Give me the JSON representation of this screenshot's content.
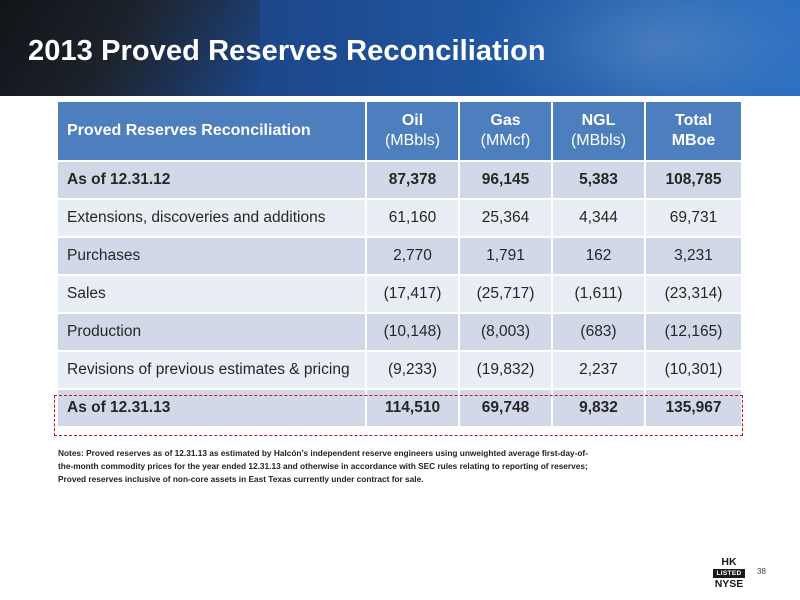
{
  "slide": {
    "title": "2013 Proved Reserves Reconciliation",
    "page_number": "38"
  },
  "table": {
    "header": {
      "label": "Proved Reserves Reconciliation",
      "columns": [
        {
          "top": "Oil",
          "bottom": "(MBbls)"
        },
        {
          "top": "Gas",
          "bottom": "(MMcf)"
        },
        {
          "top": "NGL",
          "bottom": "(MBbls)"
        },
        {
          "top": "Total",
          "bottom": "MBoe"
        }
      ]
    },
    "rows": [
      {
        "label": "As of 12.31.12",
        "values": [
          "87,378",
          "96,145",
          "5,383",
          "108,785"
        ]
      },
      {
        "label": "Extensions, discoveries and additions",
        "values": [
          "61,160",
          "25,364",
          "4,344",
          "69,731"
        ]
      },
      {
        "label": "Purchases",
        "values": [
          "2,770",
          "1,791",
          "162",
          "3,231"
        ]
      },
      {
        "label": "Sales",
        "values": [
          "(17,417)",
          "(25,717)",
          "(1,611)",
          "(23,314)"
        ]
      },
      {
        "label": "Production",
        "values": [
          "(10,148)",
          "(8,003)",
          "(683)",
          "(12,165)"
        ]
      },
      {
        "label": "Revisions of previous estimates & pricing",
        "values": [
          "(9,233)",
          "(19,832)",
          "2,237",
          "(10,301)"
        ]
      },
      {
        "label": "As of 12.31.13",
        "values": [
          "114,510",
          "69,748",
          "9,832",
          "135,967"
        ]
      }
    ]
  },
  "notes": "Notes: Proved reserves as of 12.31.13 as estimated by Halcón’s independent reserve engineers using unweighted average first-day-of-\nthe-month commodity prices for the year ended 12.31.13 and otherwise in accordance with SEC rules relating to reporting of reserves;\nProved reserves inclusive of non-core assets in East Texas currently under contract for sale.",
  "logo": {
    "line1": "HK",
    "line2": "LISTED",
    "line3": "NYSE"
  },
  "colors": {
    "header_blue": "#1d4a8f",
    "table_header": "#4d7ebd",
    "row_dark": "#d1d9e8",
    "row_light": "#e9edf4",
    "highlight_red": "#c0151a"
  }
}
